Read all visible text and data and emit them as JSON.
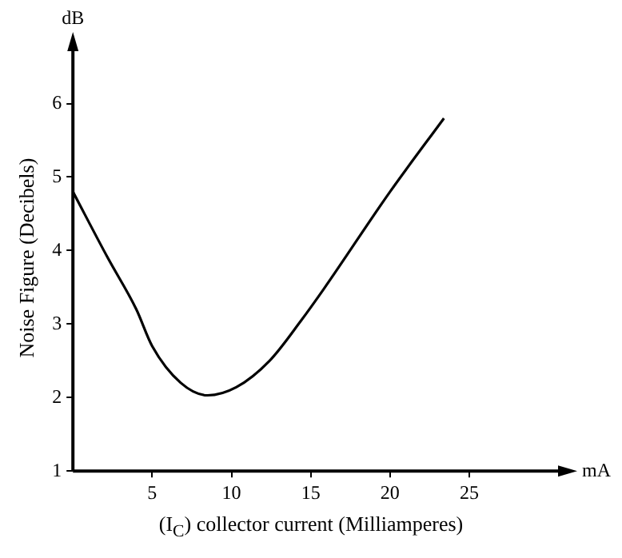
{
  "chart_data": {
    "type": "line",
    "xlabel": "(I$_{C}$) collector current (Milliamperes)",
    "ylabel": "Noise Figure (Decibels)",
    "annotations": [
      "dB",
      "mA"
    ],
    "x": [
      0,
      2.2,
      4,
      5,
      6.8,
      8.5,
      10.3,
      12.4,
      14.4,
      15.8,
      20,
      23.4
    ],
    "series": [
      {
        "color": "#000000",
        "values": [
          4.8,
          3.9,
          3.2,
          2.7,
          2.2,
          2.03,
          2.14,
          2.5,
          3.05,
          3.47,
          4.8,
          5.8
        ]
      }
    ],
    "xlim": [
      0,
      31
    ],
    "xticks": [
      5,
      10,
      15,
      20,
      25
    ],
    "ylim": [
      1,
      6.8
    ],
    "yticks": [
      1,
      2,
      3,
      4,
      5,
      6
    ],
    "grid": false,
    "legend": false,
    "marker": "none",
    "line_style": "solid"
  }
}
